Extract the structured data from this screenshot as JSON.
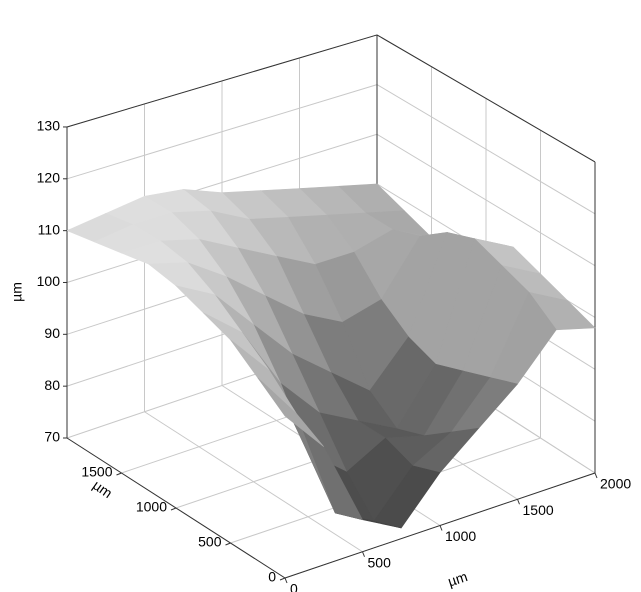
{
  "chart_data": {
    "type": "surface3d",
    "xlabel": "µm",
    "ylabel": "µm",
    "zlabel": "µm",
    "x": [
      0,
      250,
      500,
      750,
      1000,
      1250,
      1500,
      1750,
      2000
    ],
    "y": [
      0,
      250,
      500,
      750,
      1000,
      1250,
      1500,
      1750,
      2000
    ],
    "z": [
      [
        100,
        92,
        76,
        72,
        80,
        86,
        92,
        100,
        98
      ],
      [
        104,
        95,
        74,
        70,
        78,
        82,
        90,
        104,
        100
      ],
      [
        108,
        100,
        82,
        76,
        80,
        78,
        88,
        106,
        102
      ],
      [
        110,
        104,
        92,
        84,
        80,
        76,
        86,
        108,
        104
      ],
      [
        112,
        108,
        100,
        92,
        86,
        80,
        88,
        106,
        100
      ],
      [
        113,
        111,
        106,
        100,
        94,
        90,
        92,
        102,
        98
      ],
      [
        112,
        112,
        110,
        106,
        102,
        98,
        98,
        100,
        96
      ],
      [
        111,
        112,
        112,
        110,
        106,
        104,
        102,
        100,
        98
      ],
      [
        110,
        111,
        112,
        111,
        108,
        106,
        104,
        102,
        100
      ]
    ],
    "xlim": [
      0,
      2000
    ],
    "ylim": [
      0,
      2000
    ],
    "zlim": [
      70,
      130
    ],
    "xticks": [
      0,
      500,
      1000,
      1500,
      2000
    ],
    "yticks": [
      0,
      500,
      1000,
      1500
    ],
    "zticks": [
      70,
      80,
      90,
      100,
      110,
      120,
      130
    ],
    "grid": true,
    "colormap": "gray"
  }
}
